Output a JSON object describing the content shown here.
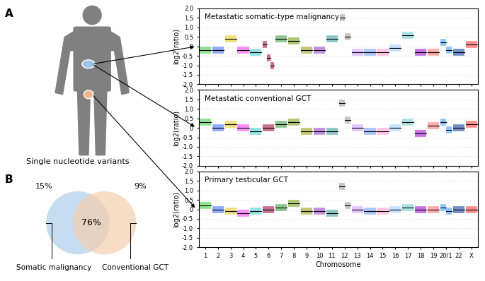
{
  "panel_labels": [
    "A",
    "B"
  ],
  "body_caption": "Single nucleotide variants",
  "chart_data": [
    {
      "type": "line",
      "title": "Metastatic somatic-type malignancy",
      "ylabel": "log2(ratio)",
      "categories": [
        "1",
        "2",
        "3",
        "4",
        "5",
        "6",
        "7",
        "8",
        "9",
        "10",
        "11",
        "12",
        "13",
        "14",
        "15",
        "16",
        "17",
        "18",
        "19",
        "20/1",
        "22",
        "X"
      ],
      "values": [
        [
          -0.2
        ],
        [
          -0.2
        ],
        [
          0.4
        ],
        [
          -0.2
        ],
        [
          -0.3
        ],
        [
          0.1,
          -0.6,
          -1.0
        ],
        [
          0.4
        ],
        [
          0.3
        ],
        [
          -0.2
        ],
        [
          -0.2
        ],
        [
          0.4
        ],
        [
          1.5,
          0.5
        ],
        [
          -0.3
        ],
        [
          -0.3
        ],
        [
          -0.3
        ],
        [
          -0.1
        ],
        [
          0.6
        ],
        [
          -0.3
        ],
        [
          -0.3
        ],
        [
          0.2,
          -0.2
        ],
        [
          -0.3
        ],
        [
          0.1
        ]
      ],
      "colors": [
        "#33cc33",
        "#3366ff",
        "#e6c619",
        "#ff33ff",
        "#33cccc",
        "#990033",
        "#339933",
        "#669900",
        "#999900",
        "#9933cc",
        "#339999",
        "#999999",
        "#cc99ff",
        "#6699ff",
        "#ff99cc",
        "#99ccff",
        "#66cccc",
        "#9900cc",
        "#ff6666",
        "#3399ff",
        "#003399",
        "#ff3333"
      ],
      "ylim": [
        -2,
        2
      ],
      "yticks": [
        {
          "value": -2,
          "label": "-2.0"
        },
        {
          "value": -1.5,
          "label": "-1.5"
        },
        {
          "value": -1,
          "label": "-1.0"
        },
        -0.5,
        0,
        0.5,
        {
          "value": 1,
          "label": "1.0"
        },
        1.5,
        {
          "value": 2,
          "label": "2.0"
        }
      ],
      "grid": true,
      "tick_labels": "y"
    },
    {
      "type": "line",
      "title": "Metastatic conventional GCT",
      "ylabel": "log2(ratio)",
      "categories": [
        "1",
        "2",
        "3",
        "4",
        "5",
        "6",
        "7",
        "8",
        "9",
        "10",
        "11",
        "12",
        "13",
        "14",
        "15",
        "16",
        "17",
        "18",
        "19",
        "20/1",
        "22",
        "X"
      ],
      "values": [
        [
          0.3
        ],
        [
          0
        ],
        [
          0.2
        ],
        [
          0
        ],
        [
          -0.2
        ],
        [
          0
        ],
        [
          0.2
        ],
        [
          0.3
        ],
        [
          -0.2
        ],
        [
          -0.2
        ],
        [
          -0.2
        ],
        [
          1.3,
          0.4
        ],
        [
          0
        ],
        [
          -0.2
        ],
        [
          -0.2
        ],
        [
          0
        ],
        [
          0.3
        ],
        [
          -0.3
        ],
        [
          0.1
        ],
        [
          0.3,
          -0.1
        ],
        [
          0
        ],
        [
          0.2
        ]
      ],
      "colors": [
        "#33cc33",
        "#3366ff",
        "#e6c619",
        "#ff33ff",
        "#33cccc",
        "#990033",
        "#339933",
        "#669900",
        "#999900",
        "#9933cc",
        "#339999",
        "#999999",
        "#cc99ff",
        "#6699ff",
        "#ff99cc",
        "#99ccff",
        "#66cccc",
        "#9900cc",
        "#ff6666",
        "#3399ff",
        "#003399",
        "#ff3333"
      ],
      "ylim": [
        -2,
        2
      ],
      "yticks": [
        {
          "value": -2,
          "label": "-2.0"
        },
        {
          "value": -1.5,
          "label": "-1.5"
        },
        {
          "value": -1,
          "label": "-1.0"
        },
        -0.5,
        0,
        0.5,
        {
          "value": 1,
          "label": "1.0"
        },
        1.5,
        {
          "value": 2,
          "label": "2.0"
        }
      ],
      "grid": true,
      "tick_labels": "y"
    },
    {
      "type": "line",
      "title": "Primary testicular GCT",
      "ylabel": "log2(ratio)",
      "xlabel": "Chromosome",
      "categories": [
        "1",
        "2",
        "3",
        "4",
        "5",
        "6",
        "7",
        "8",
        "9",
        "10",
        "11",
        "12",
        "13",
        "14",
        "15",
        "16",
        "17",
        "18",
        "19",
        "20/1",
        "22",
        "X"
      ],
      "values": [
        [
          0.2
        ],
        [
          0
        ],
        [
          -0.1
        ],
        [
          -0.2
        ],
        [
          -0.1
        ],
        [
          0
        ],
        [
          0.1
        ],
        [
          0.3
        ],
        [
          -0.1
        ],
        [
          -0.1
        ],
        [
          -0.2
        ],
        [
          1.2,
          0.2
        ],
        [
          0
        ],
        [
          -0.1
        ],
        [
          -0.1
        ],
        [
          0
        ],
        [
          0.1
        ],
        [
          0
        ],
        [
          0
        ],
        [
          0.1,
          -0.1
        ],
        [
          0
        ],
        [
          0
        ]
      ],
      "colors": [
        "#33cc33",
        "#3366ff",
        "#e6c619",
        "#ff33ff",
        "#33cccc",
        "#990033",
        "#339933",
        "#669900",
        "#999900",
        "#9933cc",
        "#339999",
        "#999999",
        "#cc99ff",
        "#6699ff",
        "#ff99cc",
        "#99ccff",
        "#66cccc",
        "#9900cc",
        "#ff6666",
        "#3399ff",
        "#003399",
        "#ff3333"
      ],
      "ylim": [
        -2,
        2
      ],
      "yticks": [
        {
          "value": -2,
          "label": "-2.0"
        },
        {
          "value": -1.5,
          "label": "-1.5"
        },
        {
          "value": -1,
          "label": "-1.0"
        },
        -0.5,
        0,
        0.5,
        {
          "value": 1,
          "label": "1.0"
        },
        1.5,
        {
          "value": 2,
          "label": "2.0"
        }
      ],
      "grid": true
    },
    {
      "type": "venn",
      "set_labels": [
        "Somatic malignancy",
        "Conventional GCT"
      ],
      "values": [
        15,
        76,
        9
      ],
      "value_labels": [
        "15%",
        "76%",
        "9%"
      ],
      "colors": [
        "#bcd6ee",
        "#f6cfae"
      ]
    }
  ]
}
